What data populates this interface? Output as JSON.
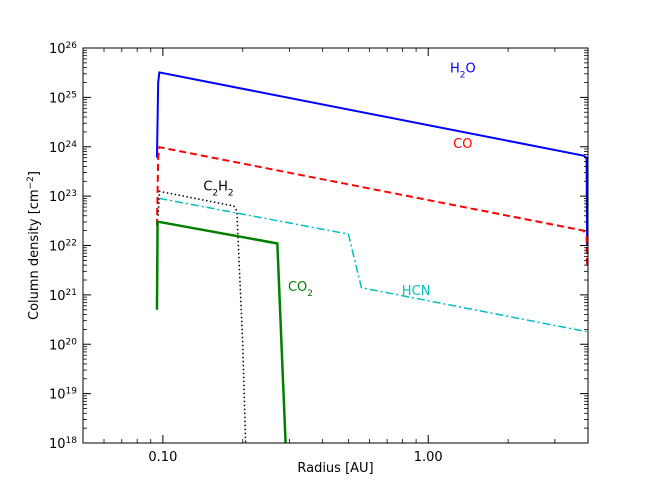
{
  "chart_data": {
    "type": "line",
    "title": "",
    "xlabel": "Radius [AU]",
    "ylabel": {
      "main": "Column density [cm",
      "sup": "−2",
      "end": "]"
    },
    "xscale": "log",
    "yscale": "log",
    "xlim": [
      0.05,
      4.0
    ],
    "ylim": [
      1e+18,
      1e+26
    ],
    "xticks": [
      {
        "value": 0.1,
        "label": "0.10"
      },
      {
        "value": 1.0,
        "label": "1.00"
      }
    ],
    "yticks": [
      {
        "value": 1e+18,
        "base": "10",
        "exp": "18"
      },
      {
        "value": 1e+19,
        "base": "10",
        "exp": "19"
      },
      {
        "value": 1e+20,
        "base": "10",
        "exp": "20"
      },
      {
        "value": 1e+21,
        "base": "10",
        "exp": "21"
      },
      {
        "value": 1e+22,
        "base": "10",
        "exp": "22"
      },
      {
        "value": 1e+23,
        "base": "10",
        "exp": "23"
      },
      {
        "value": 1e+24,
        "base": "10",
        "exp": "24"
      },
      {
        "value": 1e+25,
        "base": "10",
        "exp": "25"
      },
      {
        "value": 1e+26,
        "base": "10",
        "exp": "26"
      }
    ],
    "series": [
      {
        "name": "H2O",
        "label_main": "H",
        "label_sub": "2",
        "label_end": "O",
        "label_pos": [
          1.35,
          3.2e+25
        ],
        "color": "#0000ff",
        "dash": "solid",
        "width": 2,
        "x": [
          0.095,
          0.096,
          0.097,
          3.85,
          3.95,
          3.97
        ],
        "y": [
          6e+23,
          2e+25,
          3.2e+25,
          6.6e+23,
          6e+23,
          1e+22
        ]
      },
      {
        "name": "CO",
        "label_main": "CO",
        "label_sub": "",
        "label_end": "",
        "label_pos": [
          1.35,
          9.5e+23
        ],
        "color": "#ff0000",
        "dash": "dashed",
        "width": 2,
        "x": [
          0.095,
          0.096,
          0.097,
          3.85,
          3.95,
          3.97
        ],
        "y": [
          2.5e+22,
          6e+23,
          9.8e+23,
          2e+22,
          1.5e+22,
          4e+21
        ]
      },
      {
        "name": "C2H2",
        "label_main": "C",
        "label_sub": "2",
        "label_end": "H",
        "label_sub2": "2",
        "label_pos": [
          0.162,
          1.3e+23
        ],
        "color": "#000000",
        "dash": "dotted",
        "width": 1.5,
        "x": [
          0.096,
          0.097,
          0.185,
          0.19,
          0.2,
          0.205
        ],
        "y": [
          4e+22,
          1.25e+23,
          6.3e+22,
          5e+22,
          1e+20,
          1e+18
        ]
      },
      {
        "name": "HCN",
        "label_main": "HCN",
        "label_sub": "",
        "label_end": "",
        "label_pos": [
          0.9,
          1e+21
        ],
        "color": "#00bfbf",
        "dash": "dashdot",
        "width": 1.5,
        "x": [
          0.097,
          0.5,
          0.56,
          0.6,
          3.95
        ],
        "y": [
          9e+22,
          1.7e+22,
          1.4e+21,
          1.3e+21,
          1.8e+20
        ]
      },
      {
        "name": "CO2",
        "label_main": "CO",
        "label_sub": "2",
        "label_end": "",
        "label_pos": [
          0.33,
          1.2e+21
        ],
        "color": "#008000",
        "dash": "solid",
        "width": 2.5,
        "x": [
          0.095,
          0.0955,
          0.097,
          0.27,
          0.275,
          0.29
        ],
        "y": [
          5e+20,
          3e+22,
          3e+22,
          1.1e+22,
          1e+21,
          1e+18
        ]
      }
    ]
  }
}
